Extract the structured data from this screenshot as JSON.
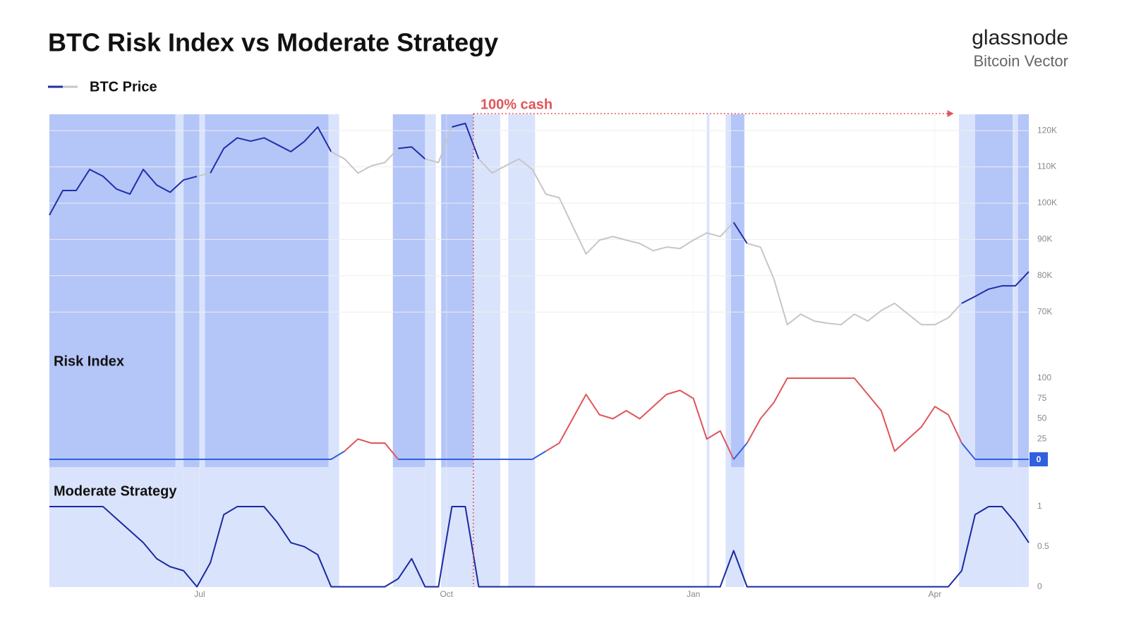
{
  "title": "BTC Risk Index vs Moderate Strategy",
  "brand": {
    "name": "glassnode",
    "subtitle": "Bitcoin Vector"
  },
  "annotation": {
    "text": "100% cash",
    "x": [
      158,
      337
    ],
    "color": "#e0555a"
  },
  "bands": [
    {
      "x": [
        0,
        47
      ],
      "shade": "dark"
    },
    {
      "x": [
        47,
        50
      ],
      "shade": "light"
    },
    {
      "x": [
        50,
        56
      ],
      "shade": "dark"
    },
    {
      "x": [
        56,
        58
      ],
      "shade": "light"
    },
    {
      "x": [
        58,
        104
      ],
      "shade": "dark"
    },
    {
      "x": [
        104,
        108
      ],
      "shade": "light"
    },
    {
      "x": [
        128,
        140
      ],
      "shade": "dark"
    },
    {
      "x": [
        140,
        144
      ],
      "shade": "light"
    },
    {
      "x": [
        146,
        158
      ],
      "shade": "dark"
    },
    {
      "x": [
        158,
        168
      ],
      "shade": "light"
    },
    {
      "x": [
        171,
        181
      ],
      "shade": "light"
    },
    {
      "x": [
        245,
        246
      ],
      "shade": "light"
    },
    {
      "x": [
        252,
        254
      ],
      "shade": "light"
    },
    {
      "x": [
        254,
        259
      ],
      "shade": "dark"
    },
    {
      "x": [
        339,
        345
      ],
      "shade": "light"
    },
    {
      "x": [
        345,
        359
      ],
      "shade": "dark"
    },
    {
      "x": [
        359,
        361
      ],
      "shade": "light"
    },
    {
      "x": [
        361,
        365
      ],
      "shade": "dark"
    }
  ],
  "shades": {
    "dark": "#b4c5f8",
    "light": "#dae3fc"
  },
  "chart_data": [
    {
      "type": "line",
      "xlim": [
        0,
        365
      ],
      "x": [
        0,
        5,
        10,
        15,
        20,
        25,
        30,
        35,
        40,
        45,
        50,
        55,
        60,
        65,
        70,
        75,
        80,
        85,
        90,
        95,
        100,
        105,
        110,
        115,
        120,
        125,
        130,
        135,
        140,
        145,
        150,
        155,
        160,
        165,
        170,
        175,
        180,
        185,
        190,
        195,
        200,
        205,
        210,
        215,
        220,
        225,
        230,
        235,
        240,
        245,
        250,
        255,
        260,
        265,
        270,
        275,
        280,
        285,
        290,
        295,
        300,
        305,
        310,
        315,
        320,
        325,
        330,
        335,
        340,
        345,
        350,
        355,
        360,
        365
      ],
      "series": [
        {
          "name": "BTC Price",
          "color": "#1f2fa8",
          "muted_color": "#c6c6c6",
          "values": [
            96.7,
            103.5,
            103.5,
            109.3,
            107.4,
            103.9,
            102.5,
            109.3,
            105,
            103,
            106.4,
            107.4,
            108.3,
            115.1,
            118,
            117.1,
            118,
            116.1,
            114.2,
            117,
            121,
            114.2,
            112.2,
            108.3,
            110.3,
            111.2,
            115.1,
            115.5,
            112.2,
            111.2,
            121,
            122,
            112.2,
            108.3,
            110.3,
            112.2,
            109.3,
            102.5,
            101.5,
            93.7,
            86,
            89.8,
            90.8,
            89.8,
            88.9,
            86.9,
            87.9,
            87.5,
            89.8,
            91.8,
            90.8,
            94.7,
            88.9,
            87.9,
            79.1,
            66.5,
            69.4,
            67.5,
            66.9,
            66.5,
            69.4,
            67.5,
            70.4,
            72.4,
            69.4,
            66.5,
            66.5,
            68.4,
            72.4,
            74.3,
            76.3,
            77.2,
            77.2,
            81.1
          ]
        }
      ],
      "ylim": [
        60.7,
        124.5
      ],
      "yticks": [
        {
          "value": 70,
          "label": "70K"
        },
        {
          "value": 80,
          "label": "80K"
        },
        {
          "value": 90,
          "label": "90K"
        },
        {
          "value": 100,
          "label": "100K"
        },
        {
          "value": 110,
          "label": "110K"
        },
        {
          "value": 120,
          "label": "120K"
        }
      ],
      "grid": true
    },
    {
      "type": "line",
      "title": "Risk Index",
      "xlim": [
        0,
        365
      ],
      "x": [
        0,
        5,
        10,
        15,
        20,
        25,
        30,
        35,
        40,
        45,
        50,
        55,
        60,
        65,
        70,
        75,
        80,
        85,
        90,
        95,
        100,
        105,
        110,
        115,
        120,
        125,
        130,
        135,
        140,
        145,
        150,
        155,
        160,
        165,
        170,
        175,
        180,
        185,
        190,
        195,
        200,
        205,
        210,
        215,
        220,
        225,
        230,
        235,
        240,
        245,
        250,
        255,
        260,
        265,
        270,
        275,
        280,
        285,
        290,
        295,
        300,
        305,
        310,
        315,
        320,
        325,
        330,
        335,
        340,
        345,
        350,
        355,
        360,
        365
      ],
      "series": [
        {
          "name": "Risk Index",
          "color": "#3060e0",
          "alert_color": "#e0555a",
          "values": [
            0,
            0,
            0,
            0,
            0,
            0,
            0,
            0,
            0,
            0,
            0,
            0,
            0,
            0,
            0,
            0,
            0,
            0,
            0,
            0,
            0,
            0,
            10,
            25,
            20,
            20,
            0,
            0,
            0,
            0,
            0,
            0,
            0,
            0,
            0,
            0,
            0,
            10,
            20,
            50,
            80,
            55,
            50,
            60,
            50,
            65,
            80,
            85,
            75,
            25,
            35,
            0,
            20,
            50,
            70,
            100,
            100,
            100,
            100,
            100,
            100,
            80,
            60,
            10,
            25,
            40,
            65,
            55,
            20,
            0,
            0,
            0,
            0,
            0
          ]
        }
      ],
      "ylim": [
        -10,
        130
      ],
      "yticks": [
        25,
        50,
        75,
        100
      ]
    },
    {
      "type": "line",
      "title": "Moderate Strategy",
      "xlim": [
        0,
        365
      ],
      "x": [
        0,
        5,
        10,
        15,
        20,
        25,
        30,
        35,
        40,
        45,
        50,
        55,
        60,
        65,
        70,
        75,
        80,
        85,
        90,
        95,
        100,
        105,
        110,
        115,
        120,
        125,
        130,
        135,
        140,
        145,
        150,
        155,
        160,
        165,
        170,
        175,
        180,
        185,
        190,
        195,
        200,
        205,
        210,
        215,
        220,
        225,
        230,
        235,
        240,
        245,
        250,
        255,
        260,
        265,
        270,
        275,
        280,
        285,
        290,
        295,
        300,
        305,
        310,
        315,
        320,
        325,
        330,
        335,
        340,
        345,
        350,
        355,
        360,
        365
      ],
      "series": [
        {
          "name": "Moderate Strategy",
          "color": "#1a2aa0",
          "values": [
            1,
            1,
            1,
            1,
            1,
            0.85,
            0.7,
            0.55,
            0.35,
            0.25,
            0.2,
            0,
            0.3,
            0.9,
            1,
            1,
            1,
            0.8,
            0.55,
            0.5,
            0.4,
            0,
            0,
            0,
            0,
            0,
            0.1,
            0.35,
            0,
            0,
            1,
            1,
            0,
            0,
            0,
            0,
            0,
            0,
            0,
            0,
            0,
            0,
            0,
            0,
            0,
            0,
            0,
            0,
            0,
            0,
            0,
            0.45,
            0,
            0,
            0,
            0,
            0,
            0,
            0,
            0,
            0,
            0,
            0,
            0,
            0,
            0,
            0,
            0,
            0.2,
            0.9,
            1,
            1,
            0.8,
            0.55
          ]
        }
      ],
      "ylim": [
        -0.03,
        1.3
      ],
      "yticks": [
        0,
        0.5,
        1
      ],
      "xticks": [
        {
          "value": 56,
          "label": "Jul"
        },
        {
          "value": 148,
          "label": "Oct"
        },
        {
          "value": 240,
          "label": "Jan"
        },
        {
          "value": 330,
          "label": "Apr"
        }
      ]
    }
  ]
}
